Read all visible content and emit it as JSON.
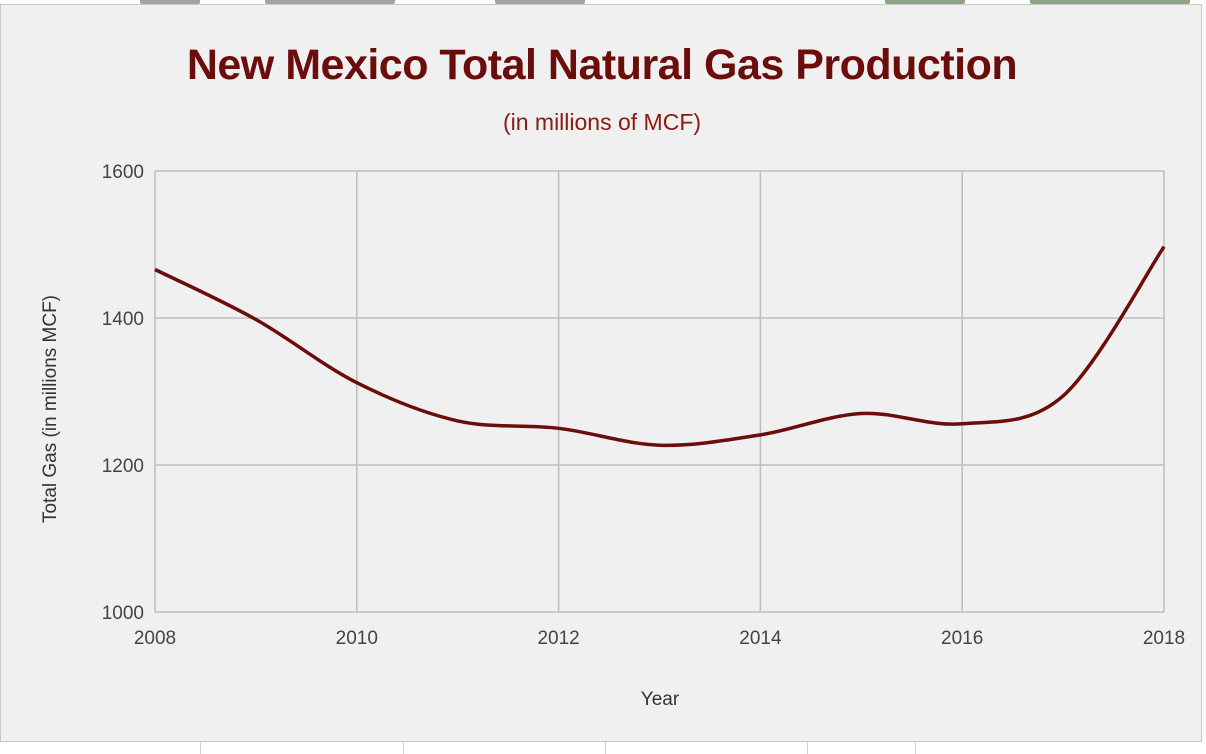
{
  "chart_data": {
    "type": "line",
    "title": "New Mexico Total Natural Gas Production",
    "subtitle": "(in millions of MCF)",
    "xlabel": "Year",
    "ylabel": "Total Gas (in millions MCF)",
    "x": [
      2008,
      2009,
      2010,
      2011,
      2012,
      2013,
      2014,
      2015,
      2016,
      2017,
      2018
    ],
    "series": [
      {
        "values": [
          1466,
          1398,
          1312,
          1260,
          1250,
          1227,
          1241,
          1270,
          1256,
          1294,
          1497
        ]
      }
    ],
    "xlim": [
      2008,
      2018
    ],
    "ylim": [
      1000,
      1600
    ],
    "xticks": [
      "2008",
      "2010",
      "2012",
      "2014",
      "2016",
      "2018"
    ],
    "yticks": [
      "1000",
      "1200",
      "1400",
      "1600"
    ],
    "grid": true,
    "line_color": "#6b0e0b",
    "title_color": "#6b0e0b"
  }
}
